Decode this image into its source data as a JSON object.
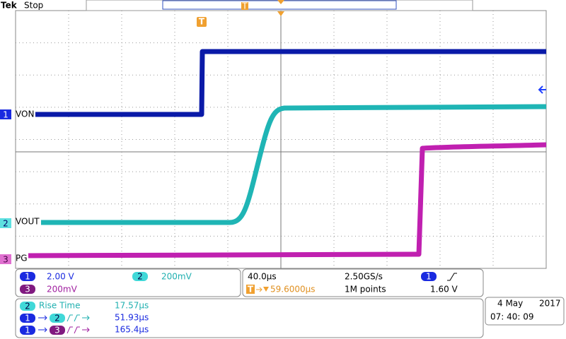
{
  "header": {
    "brand": "Tek",
    "status": "Stop",
    "trigger_icon": "T",
    "trigger_position_icon": "T"
  },
  "channels": [
    {
      "number": "1",
      "label": "VON"
    },
    {
      "number": "2",
      "label": "VOUT"
    },
    {
      "number": "3",
      "label": "PG"
    }
  ],
  "vertical": [
    {
      "channel": "1",
      "scale": "2.00 V"
    },
    {
      "channel": "2",
      "scale": "200mV"
    },
    {
      "channel": "3",
      "scale": "200mV"
    }
  ],
  "horizontal": {
    "time_per_div": "40.0µs",
    "sample_rate": "2.50GS/s",
    "trigger_channel": "1",
    "trigger_icon": "T",
    "delay": "59.6000µs",
    "record_length": "1M points",
    "trigger_level": "1.60 V"
  },
  "measurements": [
    {
      "source": "2",
      "name": "Rise Time",
      "value": "17.57µs"
    },
    {
      "source": "1",
      "target": "2",
      "value": "51.93µs"
    },
    {
      "source": "1",
      "target": "3",
      "value": "165.4µs"
    }
  ],
  "clock": {
    "date": "4 May",
    "year": "2017",
    "time": "07: 40: 09"
  }
}
